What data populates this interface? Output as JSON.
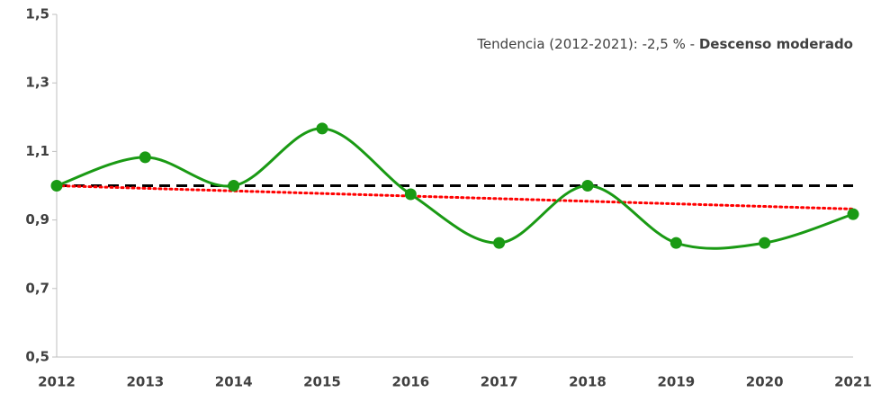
{
  "chart_data": {
    "type": "line",
    "annotation": "Tendencia (2012-2021): -2,5 % - ",
    "annotation_bold": "Descenso moderado",
    "categories": [
      "2012",
      "2013",
      "2014",
      "2015",
      "2016",
      "2017",
      "2018",
      "2019",
      "2020",
      "2021"
    ],
    "series": [
      {
        "color": "#1a9a14",
        "values": [
          1.0,
          1.083,
          1.0,
          1.167,
          0.975,
          0.833,
          1.0,
          0.833,
          0.833,
          0.917
        ]
      }
    ],
    "reference_line": {
      "value": 1.0,
      "color": "#000000"
    },
    "trend_line": {
      "values": [
        1.0,
        0.932
      ],
      "color": "#ff0000"
    },
    "ylim": [
      0.5,
      1.5
    ],
    "yticks": [
      {
        "value": 0.5,
        "label": "0,5"
      },
      {
        "value": 0.7,
        "label": "0,7"
      },
      {
        "value": 0.9,
        "label": "0,9"
      },
      {
        "value": 1.1,
        "label": "1,1"
      },
      {
        "value": 1.3,
        "label": "1,3"
      },
      {
        "value": 1.5,
        "label": "1,5"
      }
    ]
  }
}
